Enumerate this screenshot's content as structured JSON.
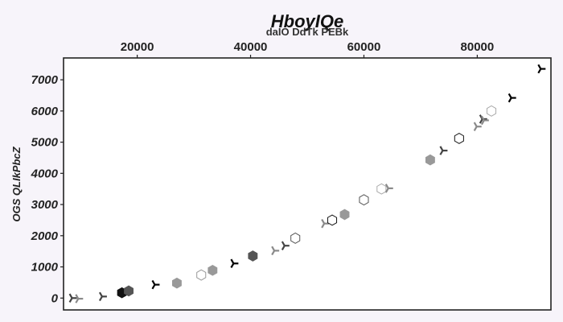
{
  "chart_data": {
    "type": "scatter",
    "title": "HboyIQe",
    "xlabel": "daIO DdTk PEBk",
    "ylabel": "OGS QLIkPbcZ",
    "x_axis_position": "top",
    "xlim": [
      7000,
      93000
    ],
    "ylim": [
      -380,
      7700
    ],
    "x_ticks": [
      20000,
      40000,
      60000,
      80000
    ],
    "y_ticks": [
      0,
      1000,
      2000,
      3000,
      4000,
      5000,
      6000,
      7000
    ],
    "grid": false,
    "points": [
      {
        "x": 8500,
        "y": 0,
        "marker": "tri",
        "color": "#444444"
      },
      {
        "x": 9600,
        "y": -20,
        "marker": "tri",
        "color": "#8a8a8a"
      },
      {
        "x": 13800,
        "y": 50,
        "marker": "tri",
        "color": "#444444"
      },
      {
        "x": 17300,
        "y": 170,
        "marker": "hex",
        "color": "#111111"
      },
      {
        "x": 18500,
        "y": 230,
        "marker": "hex",
        "color": "#555555"
      },
      {
        "x": 23100,
        "y": 430,
        "marker": "tri",
        "color": "#000000"
      },
      {
        "x": 27000,
        "y": 480,
        "marker": "hex",
        "color": "#999999"
      },
      {
        "x": 31300,
        "y": 740,
        "marker": "hex_open",
        "color": "#999999"
      },
      {
        "x": 33300,
        "y": 890,
        "marker": "hex",
        "color": "#999999"
      },
      {
        "x": 37000,
        "y": 1110,
        "marker": "tri",
        "color": "#000000"
      },
      {
        "x": 40400,
        "y": 1350,
        "marker": "hex",
        "color": "#555555"
      },
      {
        "x": 44200,
        "y": 1520,
        "marker": "tri",
        "color": "#8a8a8a"
      },
      {
        "x": 46000,
        "y": 1680,
        "marker": "tri",
        "color": "#444444"
      },
      {
        "x": 47900,
        "y": 1920,
        "marker": "hex_open",
        "color": "#555555"
      },
      {
        "x": 53000,
        "y": 2390,
        "marker": "tri",
        "color": "#8a8a8a"
      },
      {
        "x": 54400,
        "y": 2500,
        "marker": "hex_open",
        "color": "#111111"
      },
      {
        "x": 56600,
        "y": 2680,
        "marker": "hex",
        "color": "#999999"
      },
      {
        "x": 60000,
        "y": 3150,
        "marker": "hex_open",
        "color": "#555555"
      },
      {
        "x": 63100,
        "y": 3500,
        "marker": "hex_open",
        "color": "#aaaaaa"
      },
      {
        "x": 64300,
        "y": 3520,
        "marker": "tri",
        "color": "#8a8a8a"
      },
      {
        "x": 71700,
        "y": 4430,
        "marker": "hex",
        "color": "#999999"
      },
      {
        "x": 73900,
        "y": 4730,
        "marker": "tri",
        "color": "#444444"
      },
      {
        "x": 76800,
        "y": 5120,
        "marker": "hex_open",
        "color": "#111111"
      },
      {
        "x": 79900,
        "y": 5500,
        "marker": "tri",
        "color": "#8a8a8a"
      },
      {
        "x": 80900,
        "y": 5740,
        "marker": "tri",
        "color": "#444444"
      },
      {
        "x": 81200,
        "y": 5700,
        "marker": "tri",
        "color": "#8a8a8a"
      },
      {
        "x": 82500,
        "y": 6000,
        "marker": "hex_open",
        "color": "#aaaaaa"
      },
      {
        "x": 86000,
        "y": 6420,
        "marker": "tri",
        "color": "#000000"
      },
      {
        "x": 91200,
        "y": 7350,
        "marker": "tri",
        "color": "#000000"
      }
    ]
  }
}
